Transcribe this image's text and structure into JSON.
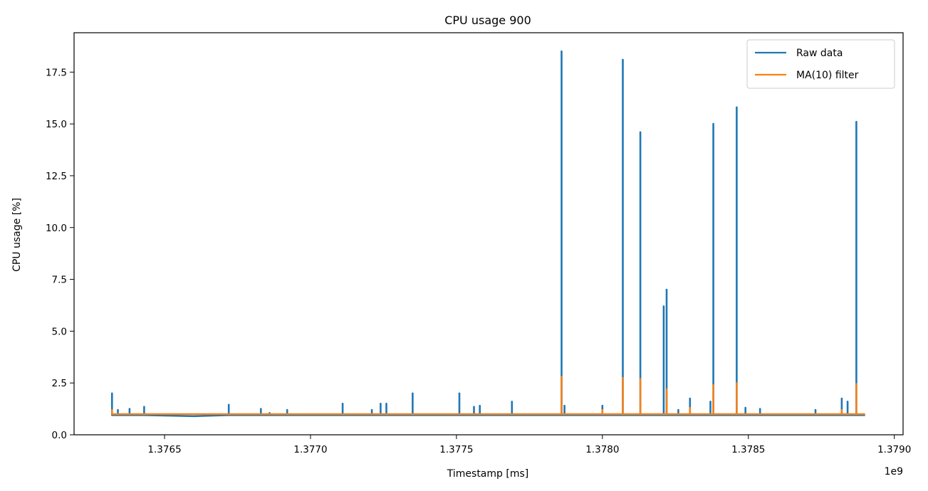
{
  "chart_data": {
    "type": "line",
    "title": "CPU usage 900",
    "xlabel": "Timestamp [ms]",
    "ylabel": "CPU usage [%]",
    "x_offset_label": "1e9",
    "xlim": [
      1.37619,
      1.37903
    ],
    "ylim": [
      0,
      19.4
    ],
    "x_ticks": [
      1.3765,
      1.377,
      1.3775,
      1.378,
      1.3785,
      1.379
    ],
    "x_tick_labels": [
      "1.3765",
      "1.3770",
      "1.3775",
      "1.3780",
      "1.3785",
      "1.3790"
    ],
    "y_ticks": [
      0,
      2.5,
      5,
      7.5,
      10,
      12.5,
      15,
      17.5
    ],
    "y_tick_labels": [
      "0.0",
      "2.5",
      "5.0",
      "7.5",
      "10.0",
      "12.5",
      "15.0",
      "17.5"
    ],
    "grid": false,
    "legend": "top-right",
    "series": [
      {
        "name": "Raw data",
        "color": "#1f77b4",
        "x": [
          1.37632,
          1.37632,
          1.37632,
          1.37634,
          1.37634,
          1.37634,
          1.37638,
          1.37638,
          1.37638,
          1.37643,
          1.37643,
          1.37643,
          1.3766,
          1.37672,
          1.37672,
          1.37672,
          1.37683,
          1.37683,
          1.37683,
          1.37686,
          1.37686,
          1.37686,
          1.37692,
          1.37692,
          1.37692,
          1.37711,
          1.37711,
          1.37711,
          1.37721,
          1.37721,
          1.37721,
          1.37724,
          1.37724,
          1.37724,
          1.37726,
          1.37726,
          1.37726,
          1.37735,
          1.37735,
          1.37735,
          1.37751,
          1.37751,
          1.37751,
          1.37756,
          1.37756,
          1.37756,
          1.37758,
          1.37758,
          1.37758,
          1.37769,
          1.37769,
          1.37769,
          1.37786,
          1.37786,
          1.37786,
          1.37787,
          1.37787,
          1.37787,
          1.378,
          1.378,
          1.378,
          1.37807,
          1.37807,
          1.37807,
          1.37813,
          1.37813,
          1.37813,
          1.37821,
          1.37821,
          1.37821,
          1.37822,
          1.37822,
          1.37822,
          1.37826,
          1.37826,
          1.37826,
          1.3783,
          1.3783,
          1.3783,
          1.37837,
          1.37837,
          1.37837,
          1.37838,
          1.37838,
          1.37838,
          1.37846,
          1.37846,
          1.37846,
          1.37849,
          1.37849,
          1.37849,
          1.37854,
          1.37854,
          1.37854,
          1.37873,
          1.37873,
          1.37873,
          1.37882,
          1.37882,
          1.37882,
          1.37884,
          1.37884,
          1.37884,
          1.37887,
          1.37887,
          1.37887,
          1.3789
        ],
        "values": [
          0.95,
          2.0,
          0.95,
          0.95,
          1.2,
          0.95,
          0.95,
          1.25,
          0.95,
          0.95,
          1.35,
          0.95,
          0.9,
          0.95,
          1.45,
          0.95,
          0.95,
          1.25,
          0.95,
          0.95,
          1.05,
          0.95,
          0.95,
          1.2,
          0.95,
          0.95,
          1.5,
          0.95,
          0.95,
          1.2,
          0.95,
          0.95,
          1.5,
          0.95,
          0.95,
          1.5,
          0.95,
          0.95,
          2.0,
          0.95,
          0.95,
          2.0,
          0.95,
          0.95,
          1.35,
          0.95,
          0.95,
          1.4,
          0.95,
          0.95,
          1.6,
          0.95,
          0.95,
          18.5,
          0.95,
          0.95,
          1.4,
          0.95,
          0.95,
          1.4,
          0.95,
          0.95,
          18.1,
          0.95,
          0.95,
          14.6,
          0.95,
          0.95,
          6.2,
          0.95,
          0.95,
          7.0,
          0.95,
          0.95,
          1.2,
          0.95,
          0.95,
          1.75,
          0.95,
          0.95,
          1.6,
          0.95,
          0.95,
          15.0,
          0.95,
          0.95,
          15.8,
          0.95,
          0.95,
          1.3,
          0.95,
          0.95,
          1.25,
          0.95,
          0.95,
          1.2,
          0.95,
          0.95,
          1.75,
          0.95,
          0.95,
          1.6,
          0.95,
          0.95,
          15.1,
          0.95,
          0.95
        ]
      },
      {
        "name": "MA(10) filter",
        "color": "#ff7f0e",
        "x": [
          1.37632,
          1.37632,
          1.37632,
          1.37786,
          1.37786,
          1.37786,
          1.378,
          1.378,
          1.378,
          1.37807,
          1.37807,
          1.37807,
          1.37813,
          1.37813,
          1.37813,
          1.37822,
          1.37822,
          1.37822,
          1.3783,
          1.3783,
          1.3783,
          1.37838,
          1.37838,
          1.37838,
          1.37846,
          1.37846,
          1.37846,
          1.37882,
          1.37882,
          1.37882,
          1.37887,
          1.37887,
          1.37887,
          1.3789
        ],
        "values": [
          1.0,
          1.2,
          1.0,
          1.0,
          2.8,
          1.0,
          1.0,
          1.2,
          1.0,
          1.0,
          2.75,
          1.0,
          1.0,
          2.7,
          1.0,
          1.0,
          2.2,
          1.0,
          1.0,
          1.3,
          1.0,
          1.0,
          2.4,
          1.0,
          1.0,
          2.5,
          1.0,
          1.0,
          1.2,
          1.0,
          1.0,
          2.45,
          1.0,
          1.0
        ]
      }
    ]
  }
}
